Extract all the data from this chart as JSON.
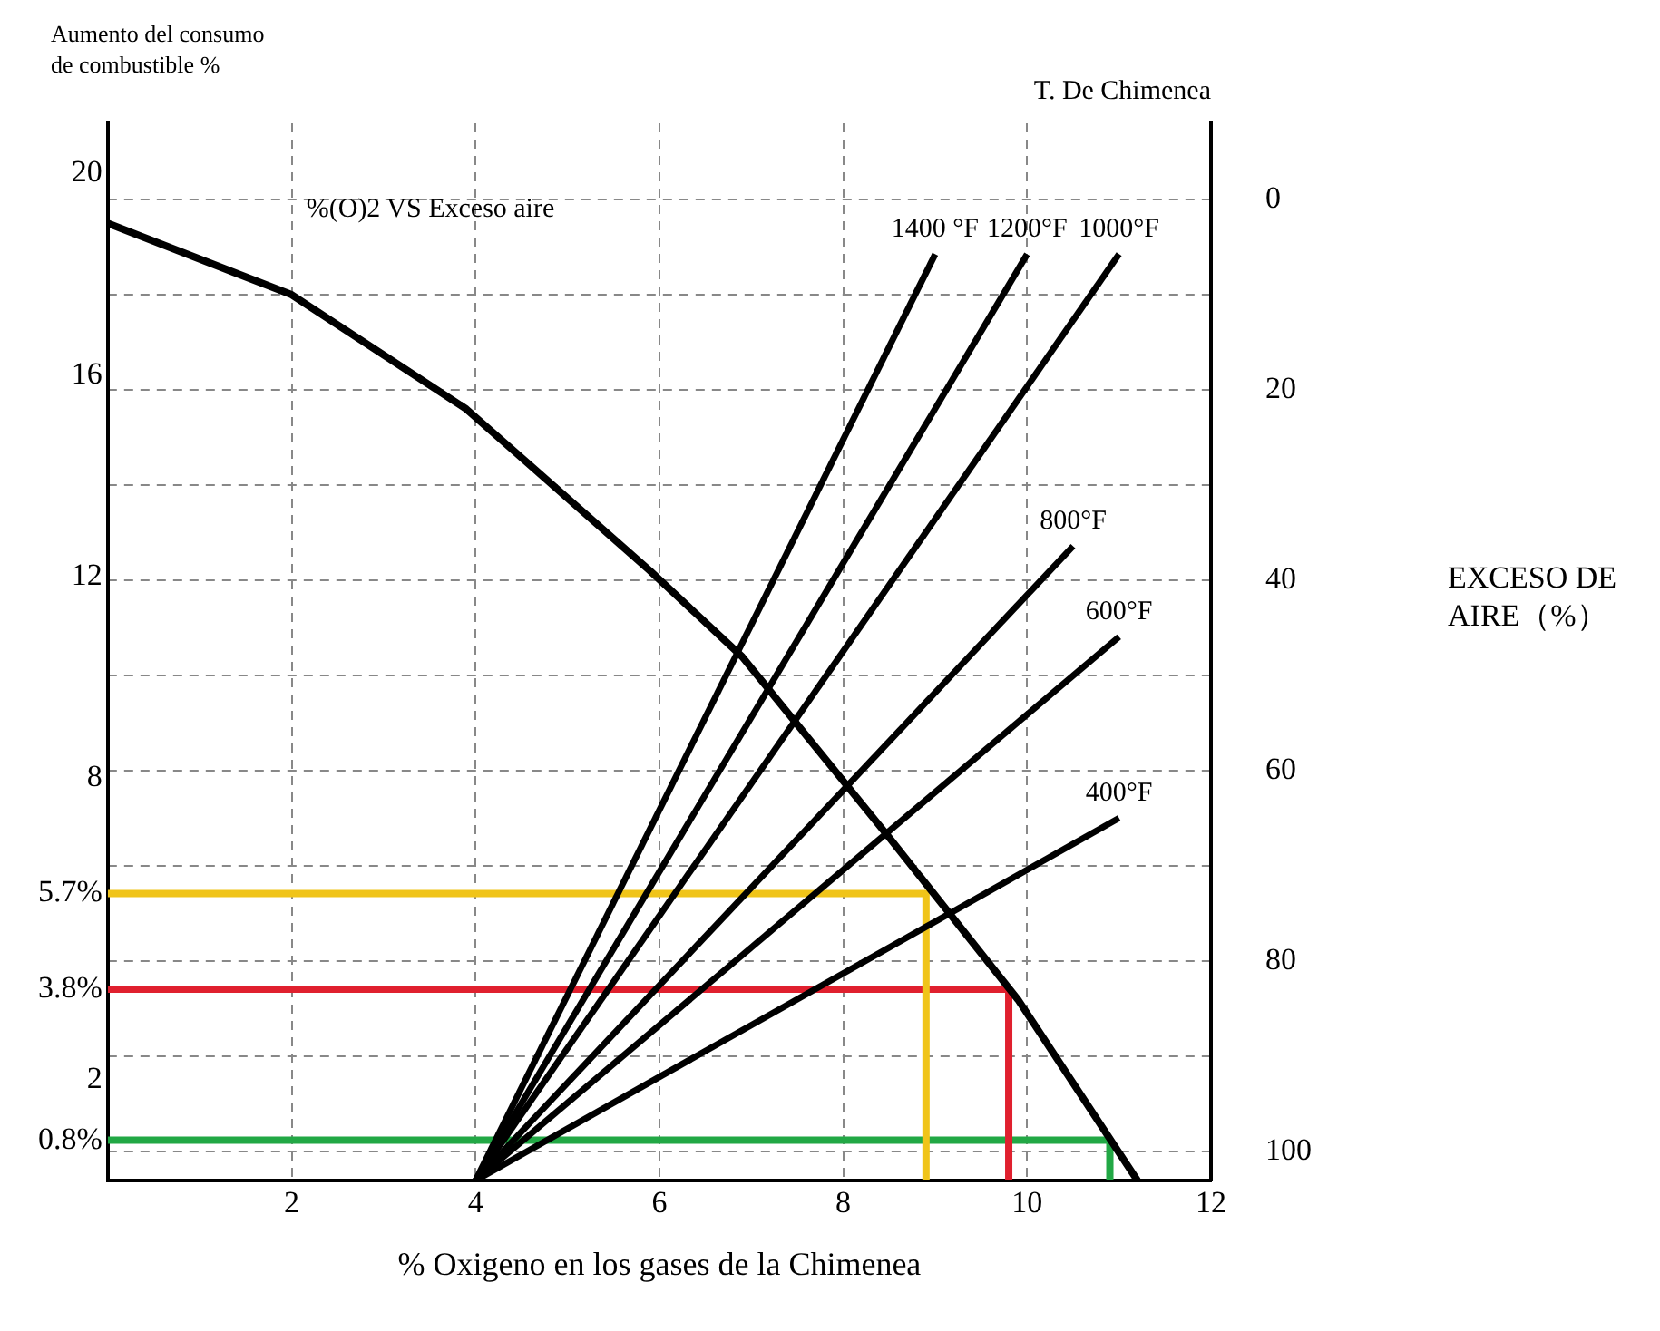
{
  "chart_data": {
    "type": "line",
    "xlabel": "% Oxigeno en los gases de la Chimenea",
    "ylabel": "Aumento del consumo de combustible %",
    "y2label": "EXCESO DE AIRE（%）",
    "annotations": [
      "%(O)2 VS Exceso aire",
      "T. De Chimenea"
    ],
    "xlim": [
      0,
      12
    ],
    "xticks": [
      2,
      4,
      6,
      8,
      10,
      12
    ],
    "ylim": [
      0,
      21
    ],
    "yticks": [
      {
        "value": 0.8,
        "label": "0.8%"
      },
      2,
      {
        "value": 3.8,
        "label": "3.8%"
      },
      {
        "value": 5.7,
        "label": "5.7%"
      },
      8,
      12,
      16,
      20
    ],
    "y2lim": [
      103,
      -8
    ],
    "y2ticks": [
      0,
      {
        "value": 10,
        "label": null
      },
      20,
      {
        "value": 30,
        "label": null
      },
      40,
      {
        "value": 50,
        "label": null
      },
      60,
      {
        "value": 70,
        "label": null
      },
      80,
      {
        "value": 90,
        "label": null
      },
      100
    ],
    "grid": true,
    "legend": false,
    "marker": "none",
    "line_style": "solid",
    "series": [
      {
        "color": "#000000",
        "axis": "y2",
        "x": [
          0,
          2,
          3.9,
          5.9,
          6.9,
          8.5,
          9.9,
          11.2
        ],
        "values": [
          2.5,
          10,
          22,
          39,
          48,
          67,
          84,
          103
        ]
      },
      {
        "name": "1400 °F",
        "color": "#000000",
        "x": [
          4,
          9
        ],
        "values": [
          0,
          18.4
        ]
      },
      {
        "name": "1200°F",
        "color": "#000000",
        "x": [
          4,
          10
        ],
        "values": [
          0,
          18.4
        ]
      },
      {
        "name": "1000°F",
        "color": "#000000",
        "x": [
          4,
          11
        ],
        "values": [
          0,
          18.4
        ]
      },
      {
        "name": "800°F",
        "color": "#000000",
        "x": [
          4,
          10.5
        ],
        "values": [
          0,
          12.6
        ]
      },
      {
        "name": "600°F",
        "color": "#000000",
        "x": [
          4,
          11
        ],
        "values": [
          0,
          10.8
        ]
      },
      {
        "name": "400°F",
        "color": "#000000",
        "x": [
          4,
          11
        ],
        "values": [
          0,
          7.2
        ]
      },
      {
        "color": "#f0c419",
        "x": [
          0,
          8.9,
          8.9
        ],
        "values": [
          5.7,
          5.7,
          0
        ]
      },
      {
        "color": "#e0202e",
        "x": [
          0,
          9.8,
          9.8
        ],
        "values": [
          3.8,
          3.8,
          0
        ]
      },
      {
        "color": "#22a845",
        "x": [
          0,
          10.9,
          10.9
        ],
        "values": [
          0.8,
          0.8,
          0
        ]
      }
    ]
  }
}
